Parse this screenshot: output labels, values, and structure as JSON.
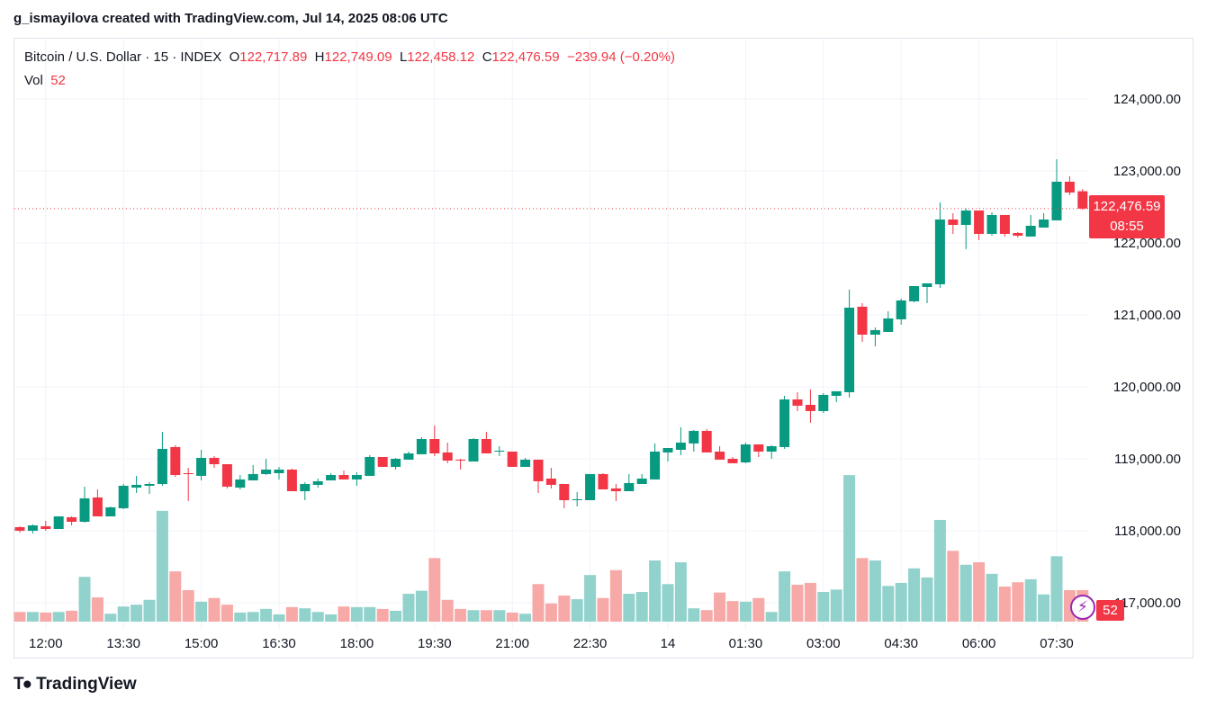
{
  "header": {
    "credit": "g_ismayilova created with TradingView.com, Jul 14, 2025 08:06 UTC"
  },
  "legend": {
    "symbol": "Bitcoin / U.S. Dollar · 15 · INDEX",
    "o_label": "O",
    "o": "122,717.89",
    "h_label": "H",
    "h": "122,749.09",
    "l_label": "L",
    "l": "122,458.12",
    "c_label": "C",
    "c": "122,476.59",
    "change": "−239.94 (−0.20%)",
    "vol_label": "Vol",
    "vol": "52"
  },
  "price_label": {
    "price": "122,476.59",
    "countdown": "08:55"
  },
  "vol_badge": "52",
  "footer": {
    "brand": "TradingView"
  },
  "icons": {
    "alert": "lightning-icon",
    "logo": "tradingview-logo-icon"
  },
  "colors": {
    "up": "#089981",
    "down": "#f23645",
    "vol_up": "#92d2cc",
    "vol_down": "#f7a9a7",
    "alert": "#9c27b0"
  },
  "chart_data": {
    "type": "candlestick",
    "interval": "15",
    "y_ticks": [
      "124,000.00",
      "123,000.00",
      "122,000.00",
      "121,000.00",
      "120,000.00",
      "119,000.00",
      "118,000.00",
      "117,000.00"
    ],
    "y_tick_values": [
      124000,
      123000,
      122000,
      121000,
      120000,
      119000,
      118000,
      117000
    ],
    "x_ticks": [
      {
        "label": "12:00",
        "time": "12:00"
      },
      {
        "label": "13:30",
        "time": "13:30"
      },
      {
        "label": "15:00",
        "time": "15:00"
      },
      {
        "label": "16:30",
        "time": "16:30"
      },
      {
        "label": "18:00",
        "time": "18:00"
      },
      {
        "label": "19:30",
        "time": "19:30"
      },
      {
        "label": "21:00",
        "time": "21:00"
      },
      {
        "label": "22:30",
        "time": "22:30"
      },
      {
        "label": "14",
        "time": "00:00"
      },
      {
        "label": "01:30",
        "time": "01:30"
      },
      {
        "label": "03:00",
        "time": "03:00"
      },
      {
        "label": "04:30",
        "time": "04:30"
      },
      {
        "label": "06:00",
        "time": "06:00"
      },
      {
        "label": "07:30",
        "time": "07:30"
      }
    ],
    "grid": true,
    "last_price": 122476.59,
    "columns": [
      "time",
      "open",
      "high",
      "low",
      "close",
      "volume"
    ],
    "candles": [
      [
        "11:30",
        118050,
        118063,
        117975,
        118000,
        16
      ],
      [
        "11:45",
        118000,
        118088,
        117963,
        118075,
        16
      ],
      [
        "12:00",
        118063,
        118138,
        118000,
        118025,
        15
      ],
      [
        "12:15",
        118025,
        118200,
        118025,
        118200,
        16
      ],
      [
        "12:30",
        118188,
        118200,
        118075,
        118125,
        18
      ],
      [
        "12:45",
        118125,
        118613,
        118113,
        118450,
        74
      ],
      [
        "13:00",
        118463,
        118575,
        118200,
        118200,
        40
      ],
      [
        "13:15",
        118200,
        118338,
        118200,
        118325,
        13
      ],
      [
        "13:30",
        118313,
        118650,
        118300,
        118625,
        25
      ],
      [
        "13:45",
        118600,
        118763,
        118525,
        118638,
        28
      ],
      [
        "14:00",
        118625,
        118675,
        118513,
        118650,
        36
      ],
      [
        "14:15",
        118650,
        119375,
        118625,
        119138,
        183
      ],
      [
        "14:30",
        119163,
        119188,
        118750,
        118775,
        83
      ],
      [
        "14:45",
        118800,
        118875,
        118413,
        118788,
        52
      ],
      [
        "15:00",
        118763,
        119125,
        118700,
        119013,
        33
      ],
      [
        "15:15",
        119013,
        119038,
        118875,
        118925,
        39
      ],
      [
        "15:30",
        118925,
        118925,
        118588,
        118613,
        28
      ],
      [
        "15:45",
        118600,
        118775,
        118575,
        118713,
        15
      ],
      [
        "16:00",
        118700,
        118913,
        118700,
        118788,
        16
      ],
      [
        "16:15",
        118788,
        119000,
        118775,
        118850,
        21
      ],
      [
        "16:30",
        118800,
        118888,
        118713,
        118850,
        12
      ],
      [
        "16:45",
        118850,
        118863,
        118550,
        118550,
        24
      ],
      [
        "17:00",
        118550,
        118675,
        118425,
        118650,
        22
      ],
      [
        "17:15",
        118638,
        118725,
        118600,
        118688,
        16
      ],
      [
        "17:30",
        118700,
        118800,
        118700,
        118775,
        12
      ],
      [
        "17:45",
        118775,
        118838,
        118713,
        118713,
        25
      ],
      [
        "18:00",
        118713,
        118813,
        118625,
        118775,
        24
      ],
      [
        "18:15",
        118763,
        119050,
        118763,
        119025,
        24
      ],
      [
        "18:30",
        119025,
        119025,
        118888,
        118888,
        21
      ],
      [
        "18:45",
        118888,
        119013,
        118850,
        119000,
        18
      ],
      [
        "19:00",
        118988,
        119100,
        118988,
        119075,
        46
      ],
      [
        "19:15",
        119063,
        119300,
        119063,
        119275,
        51
      ],
      [
        "19:30",
        119275,
        119463,
        119038,
        119075,
        105
      ],
      [
        "19:45",
        119088,
        119225,
        118938,
        118975,
        36
      ],
      [
        "20:00",
        118988,
        119000,
        118850,
        118975,
        21
      ],
      [
        "20:15",
        118963,
        119288,
        118963,
        119275,
        19
      ],
      [
        "20:30",
        119275,
        119375,
        119075,
        119075,
        19
      ],
      [
        "20:45",
        119100,
        119175,
        119038,
        119113,
        19
      ],
      [
        "21:00",
        119100,
        119100,
        118888,
        118888,
        15
      ],
      [
        "21:15",
        118888,
        119013,
        118888,
        118988,
        13
      ],
      [
        "21:30",
        118988,
        118988,
        118525,
        118688,
        62
      ],
      [
        "21:45",
        118725,
        118875,
        118588,
        118638,
        30
      ],
      [
        "22:00",
        118650,
        118650,
        118313,
        118425,
        43
      ],
      [
        "22:15",
        118425,
        118538,
        118338,
        118438,
        37
      ],
      [
        "22:30",
        118425,
        118788,
        118425,
        118788,
        77
      ],
      [
        "22:45",
        118788,
        118800,
        118575,
        118575,
        39
      ],
      [
        "23:00",
        118588,
        118650,
        118413,
        118550,
        85
      ],
      [
        "23:15",
        118550,
        118788,
        118550,
        118663,
        46
      ],
      [
        "23:30",
        118650,
        118788,
        118650,
        118725,
        49
      ],
      [
        "23:45",
        118713,
        119213,
        118713,
        119100,
        101
      ],
      [
        "00:00",
        119088,
        119150,
        118963,
        119150,
        62
      ],
      [
        "00:15",
        119125,
        119438,
        119050,
        119225,
        98
      ],
      [
        "00:30",
        119213,
        119400,
        119100,
        119388,
        22
      ],
      [
        "00:45",
        119388,
        119413,
        119088,
        119088,
        19
      ],
      [
        "01:00",
        119100,
        119175,
        118988,
        118988,
        48
      ],
      [
        "01:15",
        119000,
        119025,
        118938,
        118938,
        34
      ],
      [
        "01:30",
        118950,
        119225,
        118938,
        119200,
        33
      ],
      [
        "01:45",
        119200,
        119200,
        119025,
        119100,
        39
      ],
      [
        "02:00",
        119100,
        119188,
        119000,
        119175,
        16
      ],
      [
        "02:15",
        119163,
        119875,
        119138,
        119825,
        83
      ],
      [
        "02:30",
        119825,
        119925,
        119663,
        119738,
        61
      ],
      [
        "02:45",
        119750,
        119963,
        119500,
        119663,
        64
      ],
      [
        "03:00",
        119663,
        119913,
        119638,
        119888,
        49
      ],
      [
        "03:15",
        119875,
        119938,
        119788,
        119938,
        53
      ],
      [
        "03:30",
        119925,
        121350,
        119850,
        121100,
        242
      ],
      [
        "03:45",
        121113,
        121163,
        120625,
        120725,
        105
      ],
      [
        "04:00",
        120725,
        120825,
        120563,
        120788,
        101
      ],
      [
        "04:15",
        120763,
        121050,
        120763,
        120950,
        59
      ],
      [
        "04:30",
        120938,
        121225,
        120863,
        121200,
        64
      ],
      [
        "04:45",
        121188,
        121400,
        121175,
        121400,
        88
      ],
      [
        "05:00",
        121388,
        121438,
        121163,
        121438,
        73
      ],
      [
        "05:15",
        121425,
        122563,
        121375,
        122325,
        168
      ],
      [
        "05:30",
        122325,
        122413,
        122125,
        122250,
        117
      ],
      [
        "05:45",
        122250,
        122475,
        121913,
        122450,
        94
      ],
      [
        "06:00",
        122450,
        122450,
        122038,
        122125,
        98
      ],
      [
        "06:15",
        122125,
        122425,
        122100,
        122388,
        79
      ],
      [
        "06:30",
        122388,
        122388,
        122088,
        122125,
        58
      ],
      [
        "06:45",
        122138,
        122150,
        122075,
        122100,
        65
      ],
      [
        "07:00",
        122088,
        122388,
        122088,
        122238,
        70
      ],
      [
        "07:15",
        122213,
        122413,
        122213,
        122325,
        45
      ],
      [
        "07:30",
        122313,
        123163,
        122313,
        122850,
        108
      ],
      [
        "07:45",
        122850,
        122925,
        122663,
        122700,
        52
      ],
      [
        "08:00",
        122717.89,
        122749.09,
        122458.12,
        122476.59,
        52
      ]
    ]
  }
}
